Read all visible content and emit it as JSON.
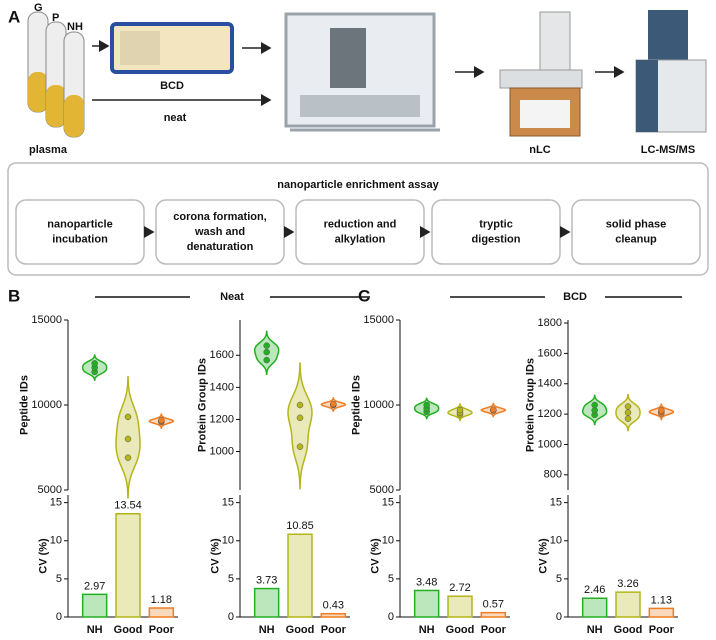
{
  "panel_labels": [
    "A",
    "B",
    "C"
  ],
  "diagram": {
    "tube_labels": [
      "G",
      "P",
      "NH"
    ],
    "plasma": "plasma",
    "bcd": "BCD",
    "neat": "neat",
    "nlc": "nLC",
    "ms": "LC-MS/MS",
    "assay_title": "nanoparticle enrichment assay",
    "steps": [
      [
        "nanoparticle",
        "incubation"
      ],
      [
        "corona formation,",
        "wash and",
        "denaturation"
      ],
      [
        "reduction and",
        "alkylation"
      ],
      [
        "tryptic",
        "digestion"
      ],
      [
        "solid phase",
        "cleanup"
      ]
    ]
  },
  "groups": [
    "Neat",
    "BCD"
  ],
  "chart_data": [
    {
      "type": "violin",
      "ylabel": "Peptide IDs",
      "ylim": [
        5000,
        15000
      ],
      "yticks": [
        5000,
        10000,
        15000
      ],
      "colors": [
        "#22b022",
        "#b5b51a",
        "#f07d22"
      ],
      "values": [
        [
          11950,
          12200,
          12450
        ],
        [
          6900,
          8000,
          9300
        ],
        [
          9000,
          9050,
          9100
        ]
      ]
    },
    {
      "type": "bar",
      "ylabel": "CV (%)",
      "ylim": [
        0,
        16
      ],
      "yticks": [
        0,
        5,
        10,
        15
      ],
      "colors": [
        "#22b022",
        "#b5b51a",
        "#f07d22"
      ],
      "categories": [
        "NH",
        "Good",
        "Poor"
      ],
      "values": [
        2.97,
        13.54,
        1.18
      ]
    },
    {
      "type": "violin",
      "ylabel": "Protein Group IDs",
      "ylim": [
        760,
        1820
      ],
      "yticks": [
        1000,
        1200,
        1400,
        1600
      ],
      "colors": [
        "#22b022",
        "#b5b51a",
        "#f07d22"
      ],
      "values": [
        [
          1570,
          1620,
          1660
        ],
        [
          1030,
          1210,
          1290
        ],
        [
          1290,
          1293,
          1296
        ]
      ]
    },
    {
      "type": "bar",
      "ylabel": "CV (%)",
      "ylim": [
        0,
        16
      ],
      "yticks": [
        0,
        5,
        10,
        15
      ],
      "colors": [
        "#22b022",
        "#b5b51a",
        "#f07d22"
      ],
      "categories": [
        "NH",
        "Good",
        "Poor"
      ],
      "values": [
        3.73,
        10.85,
        0.43
      ]
    },
    {
      "type": "violin",
      "ylabel": "Peptide IDs",
      "ylim": [
        5000,
        15000
      ],
      "yticks": [
        5000,
        10000,
        15000
      ],
      "colors": [
        "#22b022",
        "#b5b51a",
        "#f07d22"
      ],
      "values": [
        [
          9600,
          9800,
          10000
        ],
        [
          9450,
          9550,
          9700
        ],
        [
          9680,
          9700,
          9720
        ]
      ]
    },
    {
      "type": "bar",
      "ylabel": "CV (%)",
      "ylim": [
        0,
        16
      ],
      "yticks": [
        0,
        5,
        10,
        15
      ],
      "colors": [
        "#22b022",
        "#b5b51a",
        "#f07d22"
      ],
      "categories": [
        "NH",
        "Good",
        "Poor"
      ],
      "values": [
        3.48,
        2.72,
        0.57
      ]
    },
    {
      "type": "violin",
      "ylabel": "Protein Group IDs",
      "ylim": [
        700,
        1820
      ],
      "yticks": [
        800,
        1000,
        1200,
        1400,
        1600,
        1800
      ],
      "colors": [
        "#22b022",
        "#b5b51a",
        "#f07d22"
      ],
      "values": [
        [
          1195,
          1225,
          1260
        ],
        [
          1170,
          1210,
          1250
        ],
        [
          1205,
          1215,
          1225
        ]
      ]
    },
    {
      "type": "bar",
      "ylabel": "CV (%)",
      "ylim": [
        0,
        16
      ],
      "yticks": [
        0,
        5,
        10,
        15
      ],
      "colors": [
        "#22b022",
        "#b5b51a",
        "#f07d22"
      ],
      "categories": [
        "NH",
        "Good",
        "Poor"
      ],
      "values": [
        2.46,
        3.26,
        1.13
      ]
    }
  ]
}
